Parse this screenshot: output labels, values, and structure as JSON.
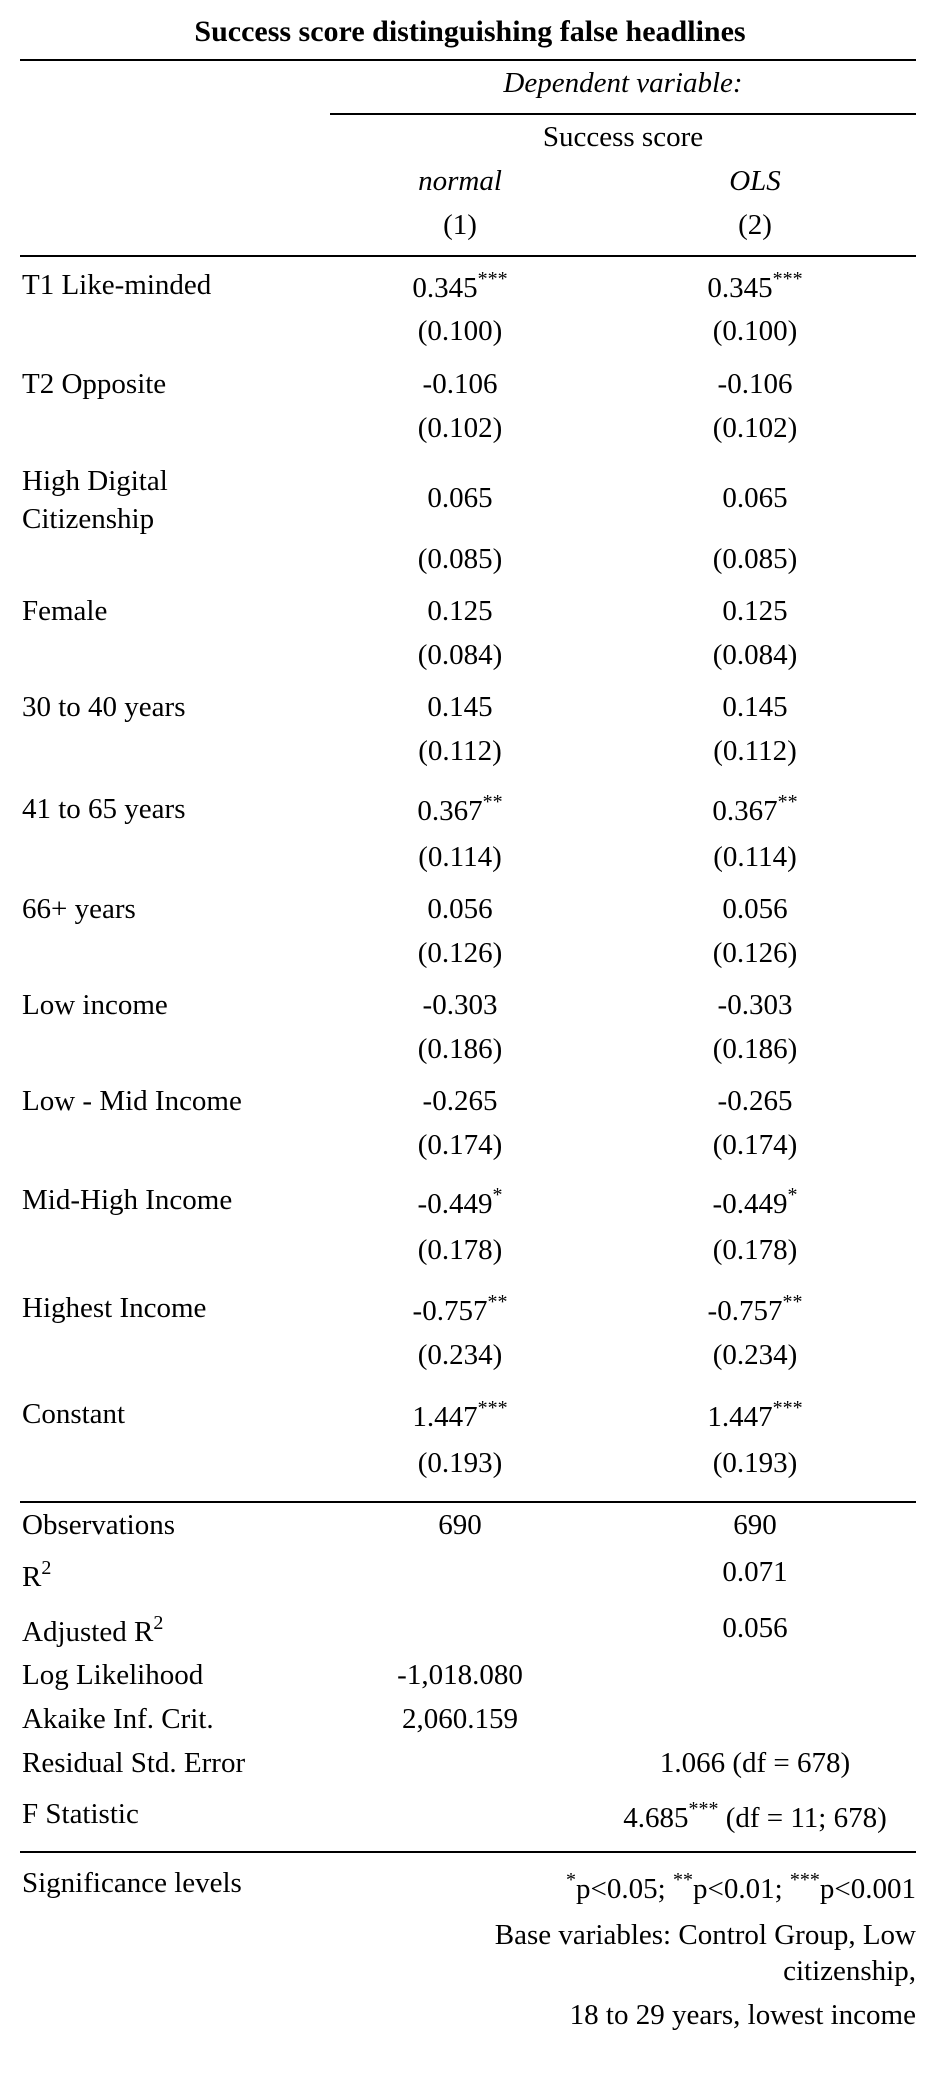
{
  "title": "Success score distinguishing false headlines",
  "header": {
    "dependent_variable": "Dependent variable:",
    "outcome": "Success score",
    "models": [
      {
        "estimator": "normal",
        "number": "(1)"
      },
      {
        "estimator": "OLS",
        "number": "(2)"
      }
    ]
  },
  "rows": [
    {
      "label": "T1 Like-minded",
      "m1": {
        "coef": "0.345",
        "stars": "***",
        "se": "(0.100)"
      },
      "m2": {
        "coef": "0.345",
        "stars": "***",
        "se": "(0.100)"
      }
    },
    {
      "label": "T2 Opposite",
      "m1": {
        "coef": "-0.106",
        "stars": "",
        "se": "(0.102)"
      },
      "m2": {
        "coef": "-0.106",
        "stars": "",
        "se": "(0.102)"
      }
    },
    {
      "label_line1": "High Digital",
      "label_line2": "Citizenship",
      "m1": {
        "coef": "0.065",
        "stars": "",
        "se": "(0.085)"
      },
      "m2": {
        "coef": "0.065",
        "stars": "",
        "se": "(0.085)"
      }
    },
    {
      "label": "Female",
      "m1": {
        "coef": "0.125",
        "stars": "",
        "se": "(0.084)"
      },
      "m2": {
        "coef": "0.125",
        "stars": "",
        "se": "(0.084)"
      }
    },
    {
      "label": "30 to 40 years",
      "m1": {
        "coef": "0.145",
        "stars": "",
        "se": "(0.112)"
      },
      "m2": {
        "coef": "0.145",
        "stars": "",
        "se": "(0.112)"
      }
    },
    {
      "label": "41 to 65 years",
      "m1": {
        "coef": "0.367",
        "stars": "**",
        "se": "(0.114)"
      },
      "m2": {
        "coef": "0.367",
        "stars": "**",
        "se": "(0.114)"
      }
    },
    {
      "label": "66+ years",
      "m1": {
        "coef": "0.056",
        "stars": "",
        "se": "(0.126)"
      },
      "m2": {
        "coef": "0.056",
        "stars": "",
        "se": "(0.126)"
      }
    },
    {
      "label": "Low income",
      "m1": {
        "coef": "-0.303",
        "stars": "",
        "se": "(0.186)"
      },
      "m2": {
        "coef": "-0.303",
        "stars": "",
        "se": "(0.186)"
      }
    },
    {
      "label": "Low - Mid Income",
      "m1": {
        "coef": "-0.265",
        "stars": "",
        "se": "(0.174)"
      },
      "m2": {
        "coef": "-0.265",
        "stars": "",
        "se": "(0.174)"
      }
    },
    {
      "label": "Mid-High Income",
      "m1": {
        "coef": "-0.449",
        "stars": "*",
        "se": "(0.178)"
      },
      "m2": {
        "coef": "-0.449",
        "stars": "*",
        "se": "(0.178)"
      }
    },
    {
      "label": "Highest Income",
      "m1": {
        "coef": "-0.757",
        "stars": "**",
        "se": "(0.234)"
      },
      "m2": {
        "coef": "-0.757",
        "stars": "**",
        "se": "(0.234)"
      }
    },
    {
      "label": "Constant",
      "m1": {
        "coef": "1.447",
        "stars": "***",
        "se": "(0.193)"
      },
      "m2": {
        "coef": "1.447",
        "stars": "***",
        "se": "(0.193)"
      }
    }
  ],
  "stats": {
    "observations": {
      "label": "Observations",
      "m1": "690",
      "m2": "690"
    },
    "r2": {
      "label": "R",
      "sup": "2",
      "m2": "0.071"
    },
    "adj_r2": {
      "label": "Adjusted R",
      "sup": "2",
      "m2": "0.056"
    },
    "log_likelihood": {
      "label": "Log Likelihood",
      "m1": "-1,018.080"
    },
    "aic": {
      "label": "Akaike Inf. Crit.",
      "m1": "2,060.159"
    },
    "residual_se": {
      "label": "Residual Std. Error",
      "m2": "1.066 (df = 678)"
    },
    "f_stat": {
      "label": "F Statistic",
      "value": "4.685",
      "stars": "***",
      "df": " (df = 11; 678)"
    }
  },
  "notes": {
    "sig_label": "Significance levels",
    "sig_s1": "*",
    "sig_t1": "p<0.05; ",
    "sig_s2": "**",
    "sig_t2": "p<0.01; ",
    "sig_s3": "***",
    "sig_t3": "p<0.001",
    "base_line1": "Base variables: Control Group, Low",
    "base_line2": "citizenship,",
    "base_line3": "18 to 29 years, lowest income"
  }
}
